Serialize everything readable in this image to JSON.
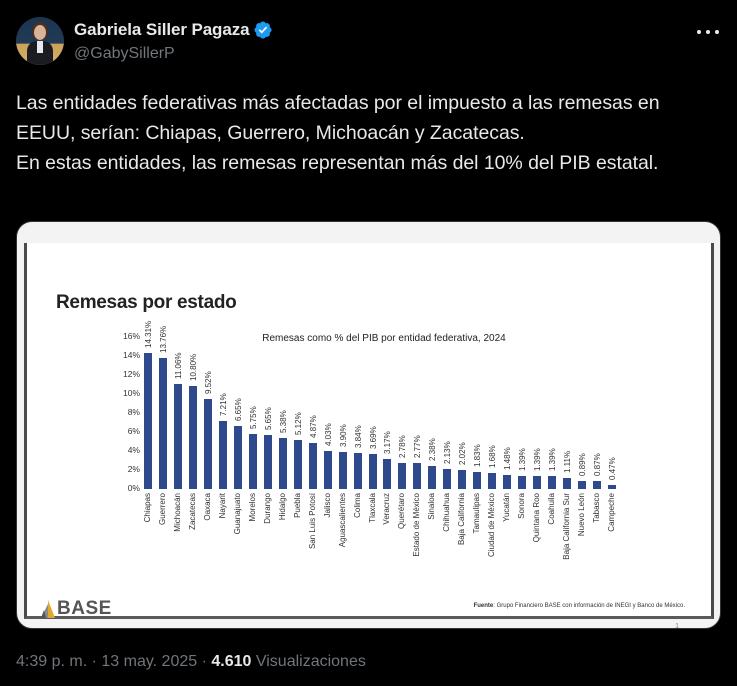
{
  "author": {
    "display_name": "Gabriela Siller Pagaza",
    "handle": "@GabySillerP",
    "verified": true,
    "verified_color": "#1d9bf0"
  },
  "tweet": {
    "text": "Las entidades federativas más afectadas por el impuesto a las remesas en EEUU, serían: Chiapas, Guerrero, Michoacán y Zacatecas.\nEn estas entidades, las remesas representan más del 10% del PIB estatal."
  },
  "slide": {
    "title": "Remesas por estado",
    "logo_text": "BASE",
    "source_label": "Fuente",
    "source_text": ": Grupo Financiero BASE con información de INEGI y Banco de México.",
    "page_number": "1"
  },
  "chart_data": {
    "type": "bar",
    "title": "Remesas como % del PIB por entidad federativa, 2024",
    "xlabel": "",
    "ylabel": "",
    "ylim": [
      0,
      16
    ],
    "yticks": [
      "0%",
      "2%",
      "4%",
      "6%",
      "8%",
      "10%",
      "12%",
      "14%",
      "16%"
    ],
    "grid": false,
    "legend": "none",
    "bar_color": "#2e4a8c",
    "categories": [
      "Chiapas",
      "Guerrero",
      "Michoacán",
      "Zacatecas",
      "Oaxaca",
      "Nayarit",
      "Guanajuato",
      "Morelos",
      "Durango",
      "Hidalgo",
      "Puebla",
      "San Luis Potosí",
      "Jalisco",
      "Aguascalientes",
      "Colima",
      "Tlaxcala",
      "Veracruz",
      "Querétaro",
      "Estado de México",
      "Sinaloa",
      "Chihuahua",
      "Baja California",
      "Tamaulipas",
      "Ciudad de México",
      "Yucatán",
      "Sonora",
      "Quintana Roo",
      "Coahuila",
      "Baja California Sur",
      "Nuevo León",
      "Tabasco",
      "Campeche"
    ],
    "values": [
      14.31,
      13.76,
      11.06,
      10.8,
      9.52,
      7.21,
      6.65,
      5.75,
      5.65,
      5.38,
      5.12,
      4.87,
      4.03,
      3.9,
      3.84,
      3.69,
      3.17,
      2.78,
      2.77,
      2.38,
      2.13,
      2.02,
      1.83,
      1.68,
      1.48,
      1.39,
      1.39,
      1.39,
      1.11,
      0.89,
      0.87,
      0.47
    ],
    "labels": [
      "14.31%",
      "13.76%",
      "11.06%",
      "10.80%",
      "9.52%",
      "7.21%",
      "6.65%",
      "5.75%",
      "5.65%",
      "5.38%",
      "5.12%",
      "4.87%",
      "4.03%",
      "3.90%",
      "3.84%",
      "3.69%",
      "3.17%",
      "2.78%",
      "2.77%",
      "2.38%",
      "2.13%",
      "2.02%",
      "1.83%",
      "1.68%",
      "1.48%",
      "1.39%",
      "1.39%",
      "1.39%",
      "1.11%",
      "0.89%",
      "0.87%",
      "0.47%"
    ]
  },
  "meta": {
    "time": "4:39 p. m.",
    "separator": " · ",
    "date": "13 may. 2025",
    "views_count": "4.610",
    "views_label": " Visualizaciones"
  },
  "icons": {
    "more": "more-options-icon",
    "verified": "verified-badge-icon"
  }
}
